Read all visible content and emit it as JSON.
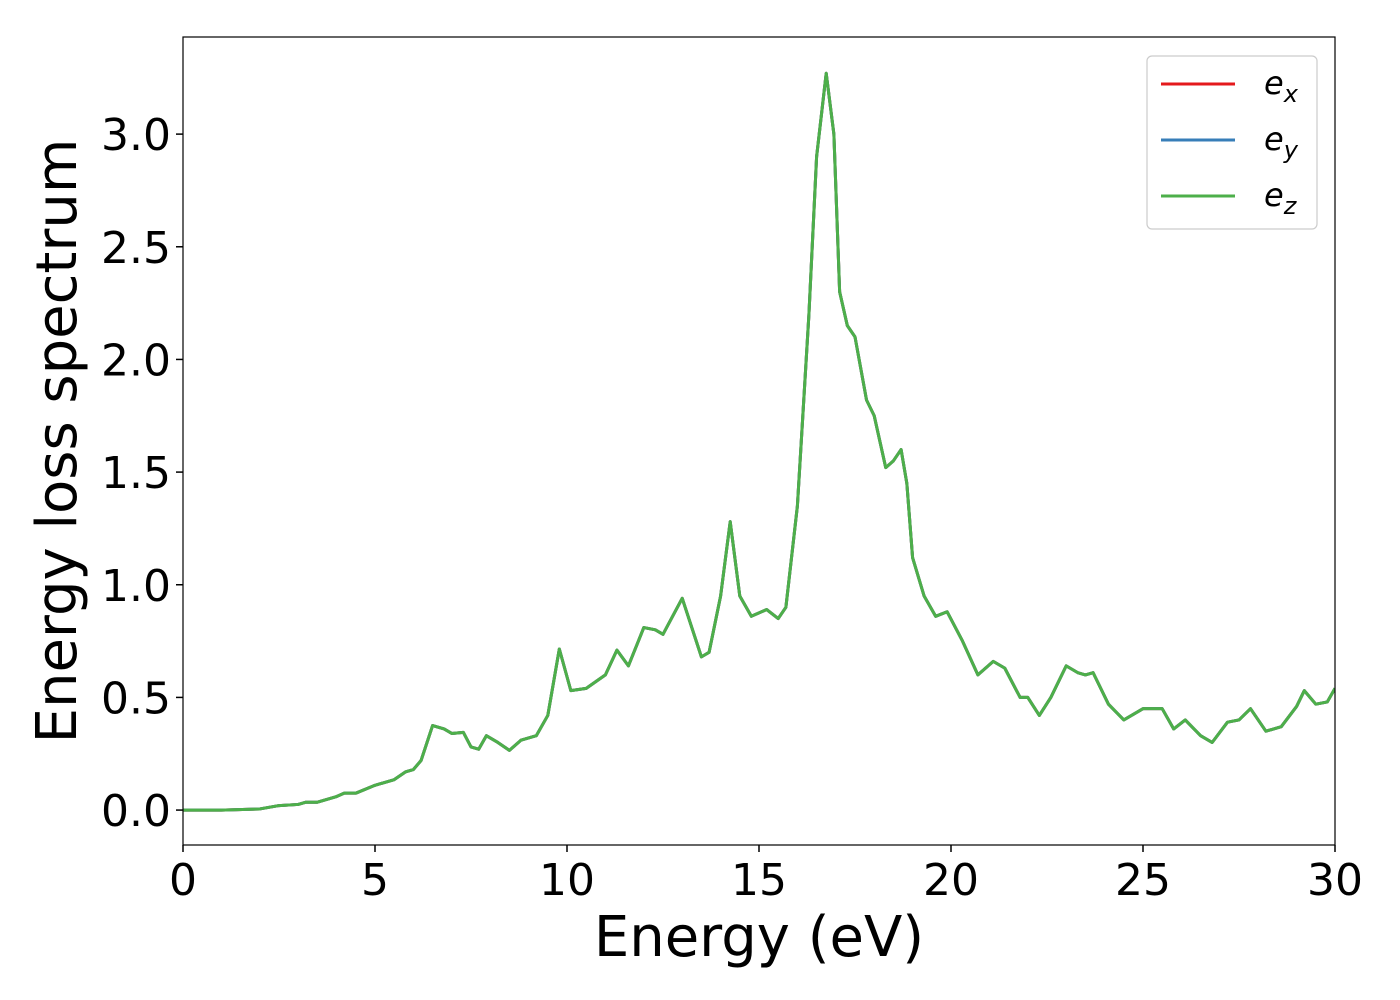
{
  "chart_data": {
    "type": "line",
    "x_label": "Energy (eV)",
    "y_label": "Energy loss spectrum",
    "x": [
      0,
      1,
      2,
      2.5,
      3,
      3.2,
      3.5,
      4,
      4.2,
      4.5,
      5,
      5.5,
      5.8,
      6,
      6.2,
      6.5,
      6.8,
      7,
      7.3,
      7.5,
      7.7,
      7.9,
      8.2,
      8.5,
      8.8,
      9.2,
      9.5,
      9.8,
      10.1,
      10.5,
      11,
      11.3,
      11.6,
      12,
      12.3,
      12.5,
      13,
      13.5,
      13.7,
      14,
      14.25,
      14.5,
      14.8,
      15.2,
      15.5,
      15.7,
      16,
      16.3,
      16.5,
      16.75,
      16.95,
      17.1,
      17.3,
      17.5,
      17.8,
      18,
      18.3,
      18.5,
      18.7,
      18.85,
      19,
      19.3,
      19.6,
      19.9,
      20.3,
      20.7,
      21.1,
      21.4,
      21.8,
      22,
      22.3,
      22.6,
      23,
      23.3,
      23.5,
      23.7,
      24.1,
      24.5,
      25,
      25.5,
      25.8,
      26.1,
      26.5,
      26.8,
      27.2,
      27.5,
      27.8,
      28.2,
      28.6,
      29,
      29.2,
      29.5,
      29.8,
      30
    ],
    "series": [
      {
        "name": "ex",
        "color": "#e41a1c",
        "values": [
          0,
          0,
          0.005,
          0.02,
          0.025,
          0.035,
          0.035,
          0.06,
          0.075,
          0.075,
          0.11,
          0.135,
          0.17,
          0.18,
          0.22,
          0.375,
          0.36,
          0.34,
          0.345,
          0.28,
          0.27,
          0.33,
          0.3,
          0.265,
          0.31,
          0.33,
          0.42,
          0.715,
          0.53,
          0.54,
          0.6,
          0.71,
          0.64,
          0.81,
          0.8,
          0.78,
          0.94,
          0.68,
          0.7,
          0.95,
          1.28,
          0.95,
          0.86,
          0.89,
          0.85,
          0.9,
          1.35,
          2.2,
          2.9,
          3.27,
          3.0,
          2.3,
          2.15,
          2.1,
          1.82,
          1.75,
          1.52,
          1.55,
          1.6,
          1.45,
          1.12,
          0.95,
          0.86,
          0.88,
          0.75,
          0.6,
          0.66,
          0.63,
          0.5,
          0.5,
          0.42,
          0.5,
          0.64,
          0.61,
          0.6,
          0.61,
          0.47,
          0.4,
          0.45,
          0.45,
          0.36,
          0.4,
          0.33,
          0.3,
          0.39,
          0.4,
          0.45,
          0.35,
          0.37,
          0.46,
          0.53,
          0.47,
          0.48,
          0.54
        ]
      },
      {
        "name": "ey",
        "color": "#377eb8",
        "values": [
          0,
          0,
          0.005,
          0.02,
          0.025,
          0.035,
          0.035,
          0.06,
          0.075,
          0.075,
          0.11,
          0.135,
          0.17,
          0.18,
          0.22,
          0.375,
          0.36,
          0.34,
          0.345,
          0.28,
          0.27,
          0.33,
          0.3,
          0.265,
          0.31,
          0.33,
          0.42,
          0.715,
          0.53,
          0.54,
          0.6,
          0.71,
          0.64,
          0.81,
          0.8,
          0.78,
          0.94,
          0.68,
          0.7,
          0.95,
          1.28,
          0.95,
          0.86,
          0.89,
          0.85,
          0.9,
          1.35,
          2.2,
          2.9,
          3.27,
          3.0,
          2.3,
          2.15,
          2.1,
          1.82,
          1.75,
          1.52,
          1.55,
          1.6,
          1.45,
          1.12,
          0.95,
          0.86,
          0.88,
          0.75,
          0.6,
          0.66,
          0.63,
          0.5,
          0.5,
          0.42,
          0.5,
          0.64,
          0.61,
          0.6,
          0.61,
          0.47,
          0.4,
          0.45,
          0.45,
          0.36,
          0.4,
          0.33,
          0.3,
          0.39,
          0.4,
          0.45,
          0.35,
          0.37,
          0.46,
          0.53,
          0.47,
          0.48,
          0.54
        ]
      },
      {
        "name": "ez",
        "color": "#4daf4a",
        "values": [
          0,
          0,
          0.005,
          0.02,
          0.025,
          0.035,
          0.035,
          0.06,
          0.075,
          0.075,
          0.11,
          0.135,
          0.17,
          0.18,
          0.22,
          0.375,
          0.36,
          0.34,
          0.345,
          0.28,
          0.27,
          0.33,
          0.3,
          0.265,
          0.31,
          0.33,
          0.42,
          0.715,
          0.53,
          0.54,
          0.6,
          0.71,
          0.64,
          0.81,
          0.8,
          0.78,
          0.94,
          0.68,
          0.7,
          0.95,
          1.28,
          0.95,
          0.86,
          0.89,
          0.85,
          0.9,
          1.35,
          2.2,
          2.9,
          3.27,
          3.0,
          2.3,
          2.15,
          2.1,
          1.82,
          1.75,
          1.52,
          1.55,
          1.6,
          1.45,
          1.12,
          0.95,
          0.86,
          0.88,
          0.75,
          0.6,
          0.66,
          0.63,
          0.5,
          0.5,
          0.42,
          0.5,
          0.64,
          0.61,
          0.6,
          0.61,
          0.47,
          0.4,
          0.45,
          0.45,
          0.36,
          0.4,
          0.33,
          0.3,
          0.39,
          0.4,
          0.45,
          0.35,
          0.37,
          0.46,
          0.53,
          0.47,
          0.48,
          0.54
        ]
      }
    ],
    "xlim": [
      0,
      30
    ],
    "xticks": [
      0,
      5,
      10,
      15,
      20,
      25,
      30
    ],
    "ylim": [
      -0.155,
      3.431
    ],
    "yticks": [
      {
        "value": 0,
        "label": "0.0"
      },
      0.5,
      {
        "value": 1,
        "label": "1.0"
      },
      1.5,
      {
        "value": 2,
        "label": "2.0"
      },
      2.5,
      {
        "value": 3,
        "label": "3.0"
      }
    ],
    "grid": false,
    "legend_loc": "upper right"
  }
}
